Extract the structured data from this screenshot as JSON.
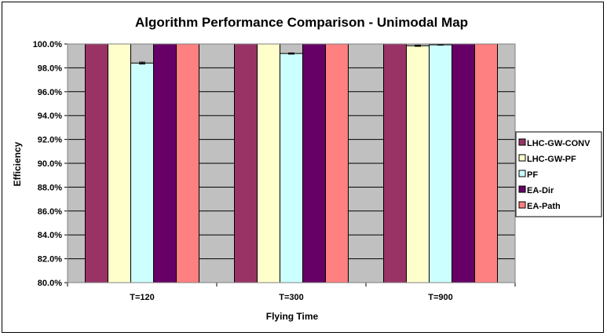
{
  "chart_data": {
    "type": "bar",
    "title": "Algorithm Performance Comparison - Unimodal Map",
    "xlabel": "Flying Time",
    "ylabel": "Efficiency",
    "categories": [
      "T=120",
      "T=300",
      "T=900"
    ],
    "ylim": [
      80.0,
      100.0
    ],
    "ytick_step": 2.0,
    "ytick_labels": [
      "80.0%",
      "82.0%",
      "84.0%",
      "86.0%",
      "88.0%",
      "90.0%",
      "92.0%",
      "94.0%",
      "96.0%",
      "98.0%",
      "100.0%"
    ],
    "grid": true,
    "legend_position": "right",
    "plot_background": "#c0c0c0",
    "series": [
      {
        "name": "LHC-GW-CONV",
        "values": [
          100.0,
          100.0,
          100.0
        ],
        "error": [
          0,
          0,
          0
        ],
        "color": "#993366"
      },
      {
        "name": "LHC-GW-PF",
        "values": [
          100.0,
          100.0,
          99.85
        ],
        "error": [
          0,
          0,
          0.05
        ],
        "color": "#ffffcc"
      },
      {
        "name": "PF",
        "values": [
          98.4,
          99.2,
          99.93
        ],
        "error": [
          0.08,
          0.05,
          0.03
        ],
        "color": "#ccffff"
      },
      {
        "name": "EA-Dir",
        "values": [
          100.0,
          100.0,
          100.0
        ],
        "error": [
          0,
          0,
          0
        ],
        "color": "#660066"
      },
      {
        "name": "EA-Path",
        "values": [
          100.0,
          100.0,
          100.0
        ],
        "error": [
          0,
          0,
          0
        ],
        "color": "#ff8080"
      }
    ]
  }
}
